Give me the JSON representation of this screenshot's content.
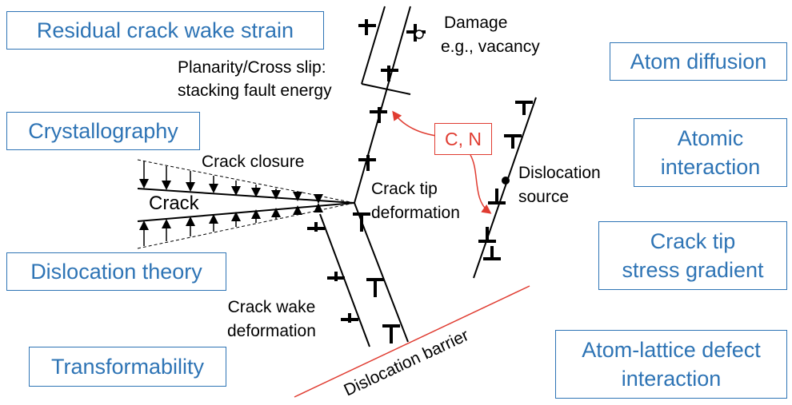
{
  "factors_left": {
    "residual": "Residual crack wake strain",
    "crystallography": "Crystallography",
    "dislocation_theory": "Dislocation theory",
    "transformability": "Transformability"
  },
  "factors_right": {
    "atom_diffusion": "Atom diffusion",
    "atomic_interaction_1": "Atomic",
    "atomic_interaction_2": "interaction",
    "stress_gradient_1": "Crack tip",
    "stress_gradient_2": "stress gradient",
    "atom_lattice_1": "Atom-lattice defect",
    "atom_lattice_2": "interaction"
  },
  "labels": {
    "damage_1": "Damage",
    "damage_2": "e.g., vacancy",
    "planarity_1": "Planarity/Cross slip:",
    "planarity_2": "stacking fault energy",
    "crack_closure": "Crack closure",
    "crack": "Crack",
    "crack_tip_def_1": "Crack tip",
    "crack_tip_def_2": "deformation",
    "dislocation_source_1": "Dislocation",
    "dislocation_source_2": "source",
    "crack_wake_def_1": "Crack wake",
    "crack_wake_def_2": "deformation",
    "dislocation_barrier": "Dislocation barrier",
    "c_n": "C, N"
  },
  "colors": {
    "box_blue": "#2e74b5",
    "red": "#e03c31",
    "black": "#000000"
  }
}
